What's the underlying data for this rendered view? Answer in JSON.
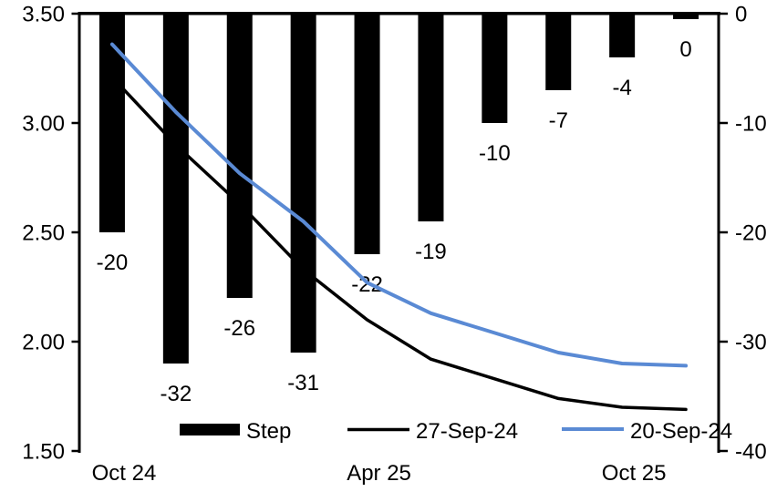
{
  "chart_data": {
    "type": "combo-bar-line",
    "title": "",
    "grid": false,
    "x_axis": {
      "tick_labels": [
        {
          "index": 0,
          "label": "Oct 24"
        },
        {
          "index": 4,
          "label": "Apr 25"
        },
        {
          "index": 8,
          "label": "Oct 25"
        }
      ]
    },
    "left_axis": {
      "min": 1.5,
      "max": 3.5,
      "tick_labels": [
        "3.50",
        "3.00",
        "2.50",
        "2.00",
        "1.50"
      ]
    },
    "right_axis": {
      "min": -40,
      "max": 0,
      "tick_labels": [
        "0",
        "-10",
        "-20",
        "-30",
        "-40"
      ]
    },
    "bar_series": {
      "name": "Step",
      "yaxis": "right",
      "color": "#000000",
      "values": [
        -20,
        -32,
        -26,
        -31,
        -22,
        -19,
        -10,
        -7,
        -4,
        0
      ],
      "data_labels": [
        "-20",
        "-32",
        "-26",
        "-31",
        "-22",
        "-19",
        "-10",
        "-7",
        "-4",
        "0"
      ]
    },
    "line_series": [
      {
        "name": "27-Sep-24",
        "yaxis": "left",
        "color": "#000000",
        "values": [
          3.21,
          2.9,
          2.63,
          2.33,
          2.1,
          1.92,
          1.83,
          1.74,
          1.7,
          1.69
        ]
      },
      {
        "name": "20-Sep-24",
        "yaxis": "left",
        "color": "#5A8AD4",
        "values": [
          3.36,
          3.05,
          2.77,
          2.55,
          2.27,
          2.13,
          2.04,
          1.95,
          1.9,
          1.89
        ]
      }
    ],
    "legend": {
      "position": "bottom",
      "items": [
        {
          "label": "Step",
          "type": "bar"
        },
        {
          "label": "27-Sep-24",
          "type": "line"
        },
        {
          "label": "20-Sep-24",
          "type": "line"
        }
      ]
    }
  },
  "colors": {
    "background": "#ffffff",
    "axis": "#000000",
    "bar": "#000000",
    "line_27sep": "#000000",
    "line_20sep": "#5A8AD4",
    "text": "#000000"
  }
}
